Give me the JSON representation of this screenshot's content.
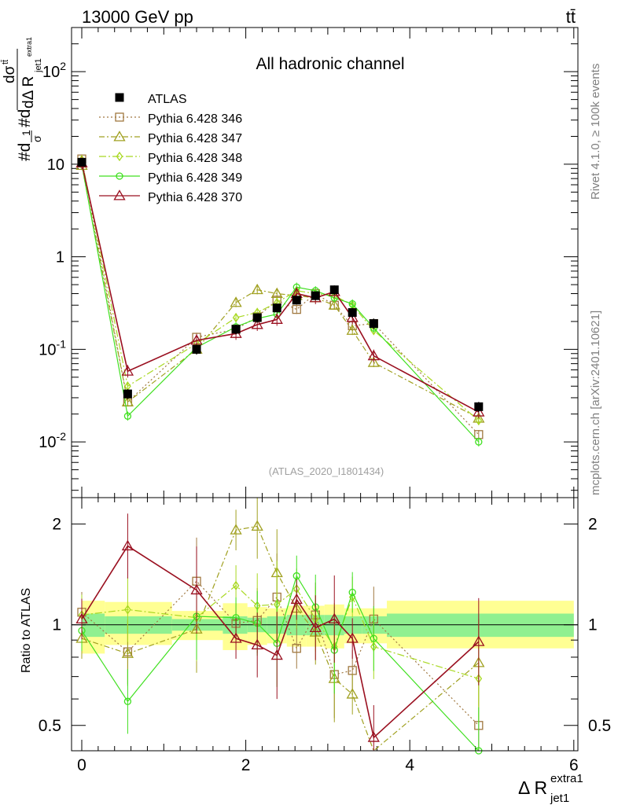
{
  "header": {
    "energy_label": "13000 GeV pp",
    "process_label": "tt̄"
  },
  "side_labels": {
    "rivet": "Rivet 4.1.0, ≥ 100k events",
    "mcplots": "mcplots.cern.ch [arXiv:2401.10621]"
  },
  "chart_data": [
    {
      "type": "line",
      "panel": "main",
      "title": "All hadronic channel",
      "analysis_tag": "(ATLAS_2020_I1801434)",
      "ylabel": "#d¹/σ#d dσ^tt̄ / dΔ R^extra1_jet1",
      "yscale": "log",
      "ylim": [
        0.0025,
        300
      ],
      "xlim": [
        -0.2,
        6.1
      ],
      "x_ticks": [
        "0",
        "2",
        "4",
        "6"
      ],
      "y_ticks": [
        "10^-2",
        "10^-1",
        "1",
        "10",
        "10^2"
      ],
      "legend_position": "top-left",
      "legend": [
        "ATLAS",
        "Pythia 6.428 346",
        "Pythia 6.428 347",
        "Pythia 6.428 348",
        "Pythia 6.428 349",
        "Pythia 6.428 370"
      ],
      "x": [
        0.0,
        0.56,
        1.4,
        1.88,
        2.14,
        2.38,
        2.62,
        2.85,
        3.08,
        3.3,
        3.56,
        4.84
      ],
      "data": {
        "name": "ATLAS",
        "values": [
          10.5,
          0.033,
          0.1,
          0.165,
          0.22,
          0.28,
          0.34,
          0.38,
          0.44,
          0.25,
          0.19,
          0.024
        ],
        "errors": [
          0.8,
          0.004,
          0.012,
          0.02,
          0.025,
          0.03,
          0.035,
          0.04,
          0.05,
          0.03,
          0.025,
          0.003
        ]
      },
      "series": [
        {
          "name": "Pythia 6.428 346",
          "color": "#a07840",
          "marker": "square",
          "dash": "2,3",
          "values": [
            11.4,
            0.027,
            0.135,
            0.165,
            0.225,
            0.34,
            0.27,
            0.4,
            0.3,
            0.18,
            0.19,
            0.012
          ]
        },
        {
          "name": "Pythia 6.428 347",
          "color": "#a0a020",
          "marker": "triangle",
          "dash": "7,3,2,3",
          "values": [
            9.7,
            0.027,
            0.1,
            0.32,
            0.44,
            0.4,
            0.38,
            0.36,
            0.3,
            0.16,
            0.072,
            0.018
          ]
        },
        {
          "name": "Pythia 6.428 348",
          "color": "#a8d820",
          "marker": "diamond",
          "dash": "9,3,2,3",
          "values": [
            11.2,
            0.04,
            0.115,
            0.22,
            0.25,
            0.32,
            0.43,
            0.4,
            0.38,
            0.3,
            0.16,
            0.017
          ]
        },
        {
          "name": "Pythia 6.428 349",
          "color": "#40e020",
          "marker": "circle",
          "dash": "",
          "values": [
            10.0,
            0.019,
            0.105,
            0.175,
            0.215,
            0.24,
            0.47,
            0.43,
            0.36,
            0.31,
            0.17,
            0.01
          ]
        },
        {
          "name": "Pythia 6.428 370",
          "color": "#9a1020",
          "marker": "triangle",
          "dash": "",
          "values": [
            10.3,
            0.058,
            0.125,
            0.148,
            0.185,
            0.21,
            0.4,
            0.36,
            0.42,
            0.22,
            0.085,
            0.021
          ]
        }
      ]
    },
    {
      "type": "line",
      "panel": "ratio",
      "ylabel": "Ratio to ATLAS",
      "yscale": "log",
      "ylim": [
        0.42,
        2.4
      ],
      "xlabel": "Δ R^extra1_jet1",
      "x_ticks": [
        "0",
        "2",
        "4",
        "6"
      ],
      "y_ticks": [
        "0.5",
        "1",
        "2"
      ],
      "bands": {
        "bin_edges": [
          0.0,
          0.28,
          1.1,
          1.72,
          2.02,
          2.26,
          2.5,
          2.74,
          2.96,
          3.2,
          3.42,
          3.72,
          6.0
        ],
        "stat_lo": [
          0.92,
          0.94,
          0.96,
          0.94,
          0.95,
          0.94,
          0.93,
          0.93,
          0.93,
          0.94,
          0.94,
          0.92
        ],
        "stat_hi": [
          1.08,
          1.06,
          1.04,
          1.06,
          1.05,
          1.06,
          1.07,
          1.07,
          1.07,
          1.06,
          1.06,
          1.08
        ],
        "total_lo": [
          0.82,
          0.87,
          0.9,
          0.84,
          0.87,
          0.88,
          0.86,
          0.86,
          0.85,
          0.88,
          0.88,
          0.85
        ],
        "total_hi": [
          1.18,
          1.17,
          1.1,
          1.16,
          1.13,
          1.12,
          1.14,
          1.14,
          1.15,
          1.12,
          1.12,
          1.18
        ]
      },
      "series": [
        {
          "name": "Pythia 6.428 346",
          "values": [
            1.09,
            0.83,
            1.35,
            1.01,
            1.03,
            1.21,
            0.85,
            1.07,
            0.71,
            0.73,
            1.04,
            0.5
          ]
        },
        {
          "name": "Pythia 6.428 347",
          "values": [
            0.91,
            0.82,
            0.97,
            1.92,
            1.97,
            1.43,
            1.12,
            0.95,
            0.69,
            0.62,
            0.37,
            0.77
          ]
        },
        {
          "name": "Pythia 6.428 348",
          "values": [
            1.07,
            1.11,
            1.05,
            1.31,
            1.14,
            1.15,
            1.28,
            1.04,
            0.86,
            1.21,
            0.86,
            0.69
          ]
        },
        {
          "name": "Pythia 6.428 349",
          "values": [
            0.96,
            0.59,
            1.06,
            1.05,
            1.01,
            0.88,
            1.4,
            1.13,
            0.84,
            1.25,
            0.91,
            0.42
          ]
        },
        {
          "name": "Pythia 6.428 370",
          "values": [
            1.04,
            1.72,
            1.27,
            0.91,
            0.87,
            0.81,
            1.19,
            0.98,
            1.04,
            0.91,
            0.46,
            0.89
          ]
        }
      ]
    }
  ]
}
